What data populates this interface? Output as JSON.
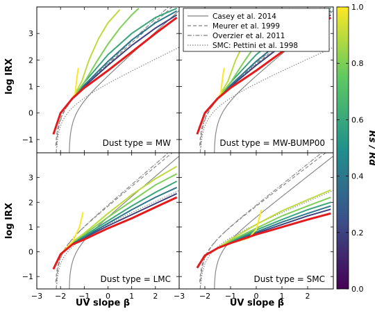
{
  "figure": {
    "y_axis_label": "log IRX",
    "x_axis_label": "UV slope β",
    "colorbar_label": "Rs / Rd",
    "colorbar_ticks": [
      "0.0",
      "0.2",
      "0.4",
      "0.6",
      "0.8",
      "1.0"
    ],
    "colormap": [
      "#440154",
      "#3b528b",
      "#21918c",
      "#5ec962",
      "#fde725"
    ]
  },
  "legend": [
    {
      "label": "Casey et al. 2014",
      "style": "solid",
      "color": "#808080"
    },
    {
      "label": "Meurer et al. 1999",
      "style": "dashed",
      "color": "#808080"
    },
    {
      "label": "Overzier et al. 2011",
      "style": "dashdot",
      "color": "#808080"
    },
    {
      "label": "SMC: Pettini et al. 1998",
      "style": "dotted",
      "color": "#808080"
    }
  ],
  "chart_data": [
    {
      "type": "line",
      "annotation": "Dust type = MW",
      "xlim": [
        -3,
        3
      ],
      "ylim": [
        -1.5,
        4
      ],
      "x_ticks": [
        "−3",
        "−2",
        "−1",
        "0",
        "1",
        "2"
      ],
      "y_ticks": [
        "−1",
        "0",
        "1",
        "2",
        "3"
      ],
      "reference_curves": [
        "casey",
        "meurer",
        "overzier",
        "pettini"
      ],
      "red_curve": {
        "x": [
          -2.3,
          -2.0,
          -1.5,
          -1.0,
          0,
          1,
          2,
          2.9
        ],
        "y": [
          -0.8,
          0.0,
          0.55,
          0.95,
          1.6,
          2.3,
          3.0,
          3.6
        ]
      },
      "ratio_curves": [
        {
          "rs_rd": 1.0,
          "x": [
            -1.38,
            -1.3,
            -1.25
          ],
          "y": [
            0.75,
            1.4,
            1.7
          ]
        },
        {
          "rs_rd": 0.9,
          "x": [
            -1.1,
            -0.8,
            -0.4,
            0.0,
            0.5
          ],
          "y": [
            1.2,
            2.0,
            2.8,
            3.4,
            3.9
          ]
        },
        {
          "rs_rd": 0.8,
          "x": [
            -1.0,
            -0.5,
            0.0,
            0.5,
            1.0,
            1.3
          ],
          "y": [
            1.15,
            1.9,
            2.6,
            3.2,
            3.7,
            3.95
          ]
        },
        {
          "rs_rd": 0.6,
          "x": [
            -1.0,
            0.0,
            1.0,
            2.0,
            2.9
          ],
          "y": [
            1.15,
            2.2,
            3.0,
            3.6,
            3.95
          ]
        },
        {
          "rs_rd": 0.4,
          "x": [
            -1.0,
            0.0,
            1.0,
            2.0,
            2.9
          ],
          "y": [
            1.05,
            1.95,
            2.75,
            3.4,
            3.85
          ]
        },
        {
          "rs_rd": 0.2,
          "x": [
            -1.0,
            0.0,
            1.0,
            2.0,
            2.9
          ],
          "y": [
            1.0,
            1.8,
            2.55,
            3.2,
            3.7
          ]
        }
      ]
    },
    {
      "type": "line",
      "annotation": "Dust type = MW-BUMP00",
      "xlim": [
        -3,
        3
      ],
      "ylim": [
        -1.5,
        4
      ],
      "x_ticks": [
        "−3",
        "−2",
        "−1",
        "0",
        "1",
        "2"
      ],
      "y_ticks": [],
      "reference_curves": [
        "casey",
        "meurer",
        "overzier",
        "pettini"
      ],
      "red_curve": {
        "x": [
          -2.3,
          -2.0,
          -1.5,
          -1.0,
          0,
          1,
          2,
          2.9
        ],
        "y": [
          -0.8,
          0.0,
          0.55,
          0.95,
          1.6,
          2.3,
          3.0,
          3.6
        ]
      },
      "ratio_curves": [
        {
          "rs_rd": 1.0,
          "x": [
            -1.38,
            -1.3,
            -1.25
          ],
          "y": [
            0.75,
            1.4,
            1.7
          ]
        },
        {
          "rs_rd": 0.9,
          "x": [
            -1.1,
            -0.8,
            -0.4,
            0.0,
            0.5
          ],
          "y": [
            1.2,
            2.0,
            2.8,
            3.4,
            3.9
          ]
        },
        {
          "rs_rd": 0.8,
          "x": [
            -1.0,
            -0.5,
            0.0,
            0.5,
            1.0,
            1.3
          ],
          "y": [
            1.15,
            1.9,
            2.6,
            3.2,
            3.7,
            3.95
          ]
        },
        {
          "rs_rd": 0.6,
          "x": [
            -1.0,
            0.0,
            1.0,
            2.0,
            2.9
          ],
          "y": [
            1.15,
            2.2,
            3.0,
            3.6,
            3.95
          ]
        },
        {
          "rs_rd": 0.4,
          "x": [
            -1.0,
            0.0,
            1.0,
            2.0,
            2.9
          ],
          "y": [
            1.05,
            1.95,
            2.75,
            3.4,
            3.85
          ]
        },
        {
          "rs_rd": 0.2,
          "x": [
            -1.0,
            0.0,
            1.0,
            2.0,
            2.9
          ],
          "y": [
            1.0,
            1.8,
            2.55,
            3.2,
            3.7
          ]
        }
      ]
    },
    {
      "type": "line",
      "annotation": "Dust type = LMC",
      "xlim": [
        -3,
        3
      ],
      "ylim": [
        -1.5,
        4
      ],
      "x_ticks": [
        "−3",
        "−2",
        "−1",
        "0",
        "1",
        "2"
      ],
      "y_ticks": [
        "−1",
        "0",
        "1",
        "2",
        "3"
      ],
      "reference_curves": [
        "casey",
        "meurer",
        "overzier",
        "pettini"
      ],
      "red_curve": {
        "x": [
          -2.3,
          -2.0,
          -1.5,
          -1.0,
          0,
          1,
          2,
          2.9
        ],
        "y": [
          -0.7,
          -0.1,
          0.3,
          0.5,
          0.95,
          1.35,
          1.8,
          2.2
        ]
      },
      "ratio_curves": [
        {
          "rs_rd": 1.0,
          "x": [
            -1.5,
            -1.2,
            -1.05
          ],
          "y": [
            0.4,
            1.0,
            1.6
          ]
        },
        {
          "rs_rd": 0.9,
          "x": [
            -1.5,
            -1.0,
            0.0,
            1.0,
            2.0,
            2.9
          ],
          "y": [
            0.4,
            0.75,
            1.55,
            2.3,
            2.95,
            3.45
          ]
        },
        {
          "rs_rd": 0.8,
          "x": [
            -1.5,
            -1.0,
            0.0,
            1.0,
            2.0,
            2.9
          ],
          "y": [
            0.4,
            0.7,
            1.4,
            2.05,
            2.7,
            3.15
          ]
        },
        {
          "rs_rd": 0.6,
          "x": [
            -1.5,
            -1.0,
            0.0,
            1.0,
            2.0,
            2.9
          ],
          "y": [
            0.38,
            0.65,
            1.25,
            1.85,
            2.4,
            2.85
          ]
        },
        {
          "rs_rd": 0.4,
          "x": [
            -1.5,
            -1.0,
            0.0,
            1.0,
            2.0,
            2.9
          ],
          "y": [
            0.35,
            0.6,
            1.15,
            1.7,
            2.2,
            2.6
          ]
        },
        {
          "rs_rd": 0.2,
          "x": [
            -1.5,
            -1.0,
            0.0,
            1.0,
            2.0,
            2.9
          ],
          "y": [
            0.33,
            0.57,
            1.05,
            1.5,
            1.95,
            2.35
          ]
        }
      ]
    },
    {
      "type": "line",
      "annotation": "Dust type = SMC",
      "xlim": [
        -3,
        3
      ],
      "ylim": [
        -1.5,
        4
      ],
      "x_ticks": [
        "−3",
        "−2",
        "−1",
        "0",
        "1",
        "2"
      ],
      "y_ticks": [],
      "reference_curves": [
        "casey",
        "meurer",
        "overzier",
        "pettini"
      ],
      "red_curve": {
        "x": [
          -2.3,
          -2.0,
          -1.5,
          -1.0,
          0,
          1,
          2,
          2.9
        ],
        "y": [
          -0.65,
          -0.15,
          0.15,
          0.35,
          0.7,
          1.0,
          1.3,
          1.55
        ]
      },
      "ratio_curves": [
        {
          "rs_rd": 1.0,
          "x": [
            -0.3,
            0.0,
            0.2
          ],
          "y": [
            0.55,
            0.9,
            1.7
          ]
        },
        {
          "rs_rd": 0.9,
          "x": [
            -1.0,
            0.0,
            1.0,
            2.0,
            2.9
          ],
          "y": [
            0.5,
            1.1,
            1.65,
            2.1,
            2.5
          ]
        },
        {
          "rs_rd": 0.8,
          "x": [
            -1.0,
            0.0,
            1.0,
            2.0,
            2.9
          ],
          "y": [
            0.45,
            0.95,
            1.45,
            1.85,
            2.2
          ]
        },
        {
          "rs_rd": 0.6,
          "x": [
            -1.0,
            0.0,
            1.0,
            2.0,
            2.9
          ],
          "y": [
            0.42,
            0.88,
            1.3,
            1.7,
            2.0
          ]
        },
        {
          "rs_rd": 0.4,
          "x": [
            -1.0,
            0.0,
            1.0,
            2.0,
            2.9
          ],
          "y": [
            0.4,
            0.8,
            1.2,
            1.55,
            1.85
          ]
        },
        {
          "rs_rd": 0.2,
          "x": [
            -1.0,
            0.0,
            1.0,
            2.0,
            2.9
          ],
          "y": [
            0.38,
            0.75,
            1.1,
            1.45,
            1.72
          ]
        }
      ]
    }
  ]
}
